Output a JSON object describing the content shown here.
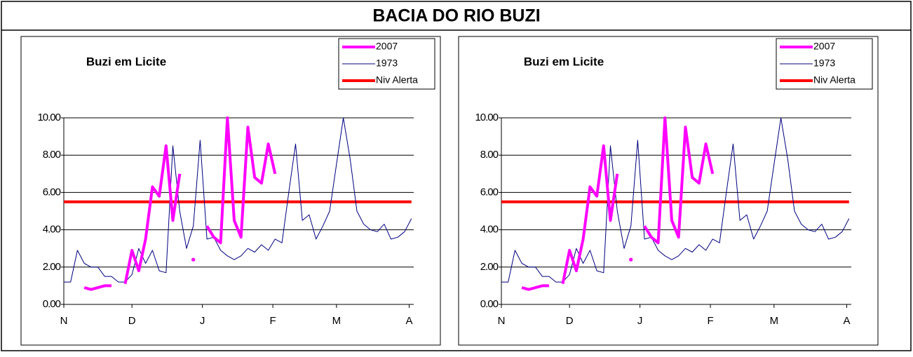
{
  "header": {
    "title": "BACIA DO RIO BUZI"
  },
  "chart_data": [
    {
      "type": "line",
      "title": "Buzi em Licite",
      "x": [
        0,
        3,
        6,
        9,
        12,
        15,
        18,
        21,
        24,
        27,
        30,
        33,
        36,
        39,
        42,
        45,
        48,
        51,
        54,
        57,
        60,
        63,
        66,
        69,
        72,
        75,
        78,
        81,
        84,
        87,
        90,
        93,
        96,
        99,
        102,
        105,
        108,
        111,
        114,
        117,
        120,
        123,
        126,
        129,
        132,
        135,
        138,
        141,
        144,
        147,
        150,
        153
      ],
      "series": [
        {
          "name": "2007",
          "color": "#ff00ff",
          "width": 4,
          "values": [
            null,
            null,
            null,
            0.9,
            0.8,
            0.9,
            1.0,
            1.0,
            null,
            1.1,
            2.9,
            1.8,
            3.5,
            6.3,
            5.8,
            8.5,
            4.5,
            7.0,
            null,
            2.4,
            null,
            4.2,
            3.6,
            3.3,
            10.0,
            4.5,
            3.6,
            9.5,
            6.8,
            6.5,
            8.6,
            7.0,
            null,
            null,
            null,
            null,
            null,
            null,
            null,
            null,
            null,
            null,
            null,
            null,
            null,
            null,
            null,
            null,
            null,
            null,
            null,
            null
          ]
        },
        {
          "name": "1973",
          "color": "#000080",
          "width": 1,
          "values": [
            1.2,
            1.2,
            2.9,
            2.2,
            2.0,
            2.0,
            1.5,
            1.5,
            1.2,
            1.2,
            1.6,
            3.0,
            2.2,
            2.9,
            1.8,
            1.7,
            8.5,
            5.0,
            3.0,
            4.2,
            8.8,
            3.5,
            3.6,
            2.9,
            2.6,
            2.4,
            2.6,
            3.0,
            2.8,
            3.2,
            2.9,
            3.5,
            3.3,
            6.0,
            8.6,
            4.5,
            4.8,
            3.5,
            4.2,
            5.0,
            7.5,
            10.0,
            7.8,
            5.0,
            4.3,
            4.0,
            3.9,
            4.3,
            3.5,
            3.6,
            3.9,
            4.6
          ]
        },
        {
          "name": "Niv Alerta",
          "color": "#ff0000",
          "width": 4,
          "values": [
            5.5,
            5.5,
            5.5,
            5.5,
            5.5,
            5.5,
            5.5,
            5.5,
            5.5,
            5.5,
            5.5,
            5.5,
            5.5,
            5.5,
            5.5,
            5.5,
            5.5,
            5.5,
            5.5,
            5.5,
            5.5,
            5.5,
            5.5,
            5.5,
            5.5,
            5.5,
            5.5,
            5.5,
            5.5,
            5.5,
            5.5,
            5.5,
            5.5,
            5.5,
            5.5,
            5.5,
            5.5,
            5.5,
            5.5,
            5.5,
            5.5,
            5.5,
            5.5,
            5.5,
            5.5,
            5.5,
            5.5,
            5.5,
            5.5,
            5.5,
            5.5,
            5.5
          ]
        }
      ],
      "xlim": [
        0,
        154
      ],
      "xticks": [
        {
          "value": 0,
          "label": "N"
        },
        {
          "value": 30,
          "label": "D"
        },
        {
          "value": 61,
          "label": "J"
        },
        {
          "value": 92,
          "label": "F"
        },
        {
          "value": 120,
          "label": "M"
        },
        {
          "value": 152,
          "label": "A"
        }
      ],
      "ylim": [
        0,
        10
      ],
      "yticks": [
        {
          "value": 0,
          "label": "0.00"
        },
        {
          "value": 2,
          "label": "2.00"
        },
        {
          "value": 4,
          "label": "4.00"
        },
        {
          "value": 6,
          "label": "6.00"
        },
        {
          "value": 8,
          "label": "8.00"
        },
        {
          "value": 10,
          "label": "10.00"
        }
      ],
      "grid": true,
      "legend": "top-right"
    },
    {
      "type": "line",
      "title": "Buzi em Licite",
      "x": [
        0,
        3,
        6,
        9,
        12,
        15,
        18,
        21,
        24,
        27,
        30,
        33,
        36,
        39,
        42,
        45,
        48,
        51,
        54,
        57,
        60,
        63,
        66,
        69,
        72,
        75,
        78,
        81,
        84,
        87,
        90,
        93,
        96,
        99,
        102,
        105,
        108,
        111,
        114,
        117,
        120,
        123,
        126,
        129,
        132,
        135,
        138,
        141,
        144,
        147,
        150,
        153
      ],
      "series": [
        {
          "name": "2007",
          "color": "#ff00ff",
          "width": 4,
          "values": [
            null,
            null,
            null,
            0.9,
            0.8,
            0.9,
            1.0,
            1.0,
            null,
            1.1,
            2.9,
            1.8,
            3.5,
            6.3,
            5.8,
            8.5,
            4.5,
            7.0,
            null,
            2.4,
            null,
            4.2,
            3.6,
            3.3,
            10.0,
            4.5,
            3.6,
            9.5,
            6.8,
            6.5,
            8.6,
            7.0,
            null,
            null,
            null,
            null,
            null,
            null,
            null,
            null,
            null,
            null,
            null,
            null,
            null,
            null,
            null,
            null,
            null,
            null,
            null,
            null
          ]
        },
        {
          "name": "1973",
          "color": "#000080",
          "width": 1,
          "values": [
            1.2,
            1.2,
            2.9,
            2.2,
            2.0,
            2.0,
            1.5,
            1.5,
            1.2,
            1.2,
            1.6,
            3.0,
            2.2,
            2.9,
            1.8,
            1.7,
            8.5,
            5.0,
            3.0,
            4.2,
            8.8,
            3.5,
            3.6,
            2.9,
            2.6,
            2.4,
            2.6,
            3.0,
            2.8,
            3.2,
            2.9,
            3.5,
            3.3,
            6.0,
            8.6,
            4.5,
            4.8,
            3.5,
            4.2,
            5.0,
            7.5,
            10.0,
            7.8,
            5.0,
            4.3,
            4.0,
            3.9,
            4.3,
            3.5,
            3.6,
            3.9,
            4.6
          ]
        },
        {
          "name": "Niv Alerta",
          "color": "#ff0000",
          "width": 4,
          "values": [
            5.5,
            5.5,
            5.5,
            5.5,
            5.5,
            5.5,
            5.5,
            5.5,
            5.5,
            5.5,
            5.5,
            5.5,
            5.5,
            5.5,
            5.5,
            5.5,
            5.5,
            5.5,
            5.5,
            5.5,
            5.5,
            5.5,
            5.5,
            5.5,
            5.5,
            5.5,
            5.5,
            5.5,
            5.5,
            5.5,
            5.5,
            5.5,
            5.5,
            5.5,
            5.5,
            5.5,
            5.5,
            5.5,
            5.5,
            5.5,
            5.5,
            5.5,
            5.5,
            5.5,
            5.5,
            5.5,
            5.5,
            5.5,
            5.5,
            5.5,
            5.5,
            5.5
          ]
        }
      ],
      "xlim": [
        0,
        154
      ],
      "xticks": [
        {
          "value": 0,
          "label": "N"
        },
        {
          "value": 30,
          "label": "D"
        },
        {
          "value": 61,
          "label": "J"
        },
        {
          "value": 92,
          "label": "F"
        },
        {
          "value": 120,
          "label": "M"
        },
        {
          "value": 152,
          "label": "A"
        }
      ],
      "ylim": [
        0,
        10
      ],
      "yticks": [
        {
          "value": 0,
          "label": "0.00"
        },
        {
          "value": 2,
          "label": "2.00"
        },
        {
          "value": 4,
          "label": "4.00"
        },
        {
          "value": 6,
          "label": "6.00"
        },
        {
          "value": 8,
          "label": "8.00"
        },
        {
          "value": 10,
          "label": "10.00"
        }
      ],
      "grid": true,
      "legend": "top-right"
    }
  ]
}
